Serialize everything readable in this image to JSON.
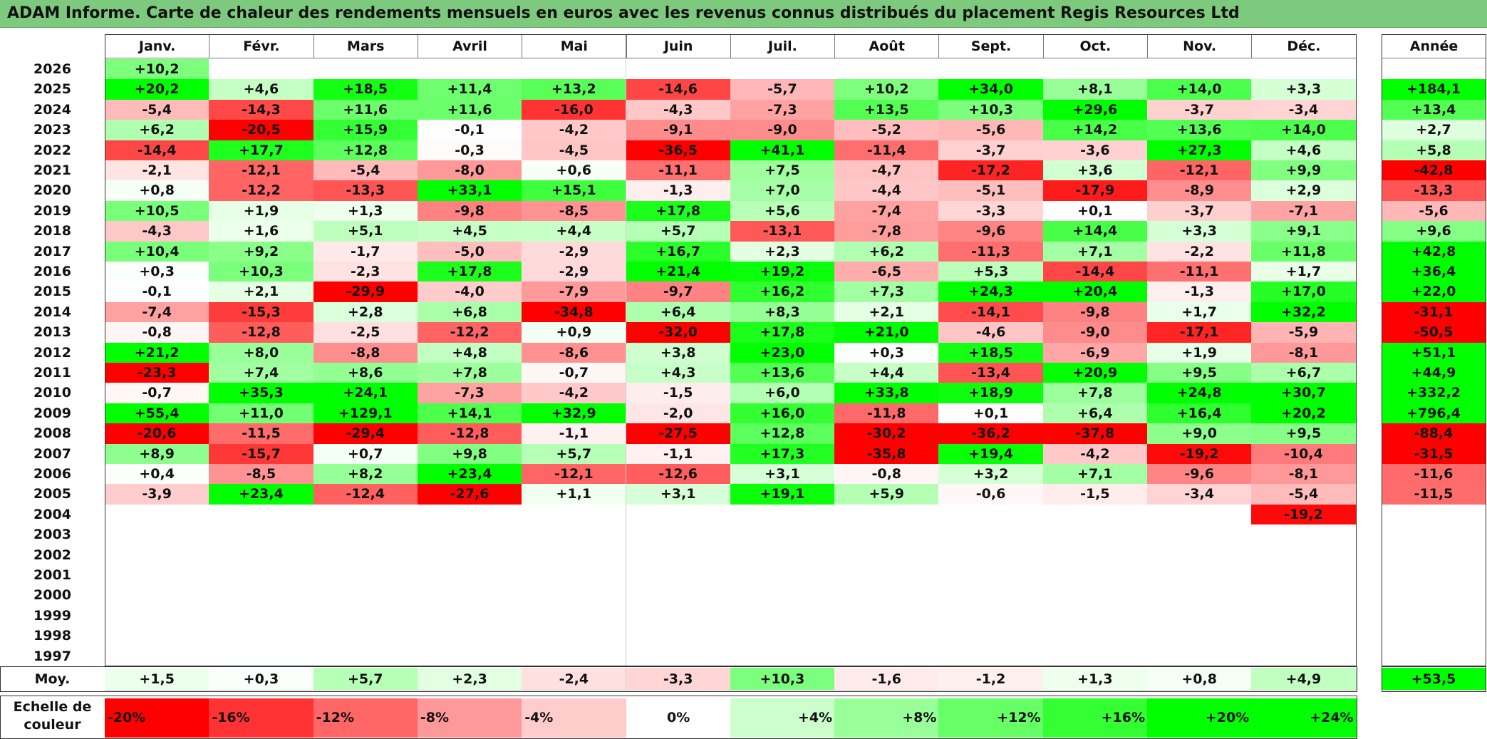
{
  "title": "ADAM Informe. Carte de chaleur des rendements mensuels en euros avec les revenus connus distribués du placement Regis Resources Ltd",
  "chart_data": {
    "type": "heatmap",
    "columns": [
      "Janv.",
      "Févr.",
      "Mars",
      "Avril",
      "Mai",
      "Juin",
      "Juil.",
      "Août",
      "Sept.",
      "Oct.",
      "Nov.",
      "Déc."
    ],
    "year_header": "Année",
    "rows": [
      {
        "year": "2026",
        "months": [
          "+10,2",
          "",
          "",
          "",
          "",
          "",
          "",
          "",
          "",
          "",
          "",
          ""
        ],
        "annual": ""
      },
      {
        "year": "2025",
        "months": [
          "+20,2",
          "+4,6",
          "+18,5",
          "+11,4",
          "+13,2",
          "-14,6",
          "-5,7",
          "+10,2",
          "+34,0",
          "+8,1",
          "+14,0",
          "+3,3"
        ],
        "annual": "+184,1"
      },
      {
        "year": "2024",
        "months": [
          "-5,4",
          "-14,3",
          "+11,6",
          "+11,6",
          "-16,0",
          "-4,3",
          "-7,3",
          "+13,5",
          "+10,3",
          "+29,6",
          "-3,7",
          "-3,4"
        ],
        "annual": "+13,4"
      },
      {
        "year": "2023",
        "months": [
          "+6,2",
          "-20,5",
          "+15,9",
          "-0,1",
          "-4,2",
          "-9,1",
          "-9,0",
          "-5,2",
          "-5,6",
          "+14,2",
          "+13,6",
          "+14,0"
        ],
        "annual": "+2,7"
      },
      {
        "year": "2022",
        "months": [
          "-14,4",
          "+17,7",
          "+12,8",
          "-0,3",
          "-4,5",
          "-36,5",
          "+41,1",
          "-11,4",
          "-3,7",
          "-3,6",
          "+27,3",
          "+4,6"
        ],
        "annual": "+5,8"
      },
      {
        "year": "2021",
        "months": [
          "-2,1",
          "-12,1",
          "-5,4",
          "-8,0",
          "+0,6",
          "-11,1",
          "+7,5",
          "-4,7",
          "-17,2",
          "+3,6",
          "-12,1",
          "+9,9"
        ],
        "annual": "-42,8"
      },
      {
        "year": "2020",
        "months": [
          "+0,8",
          "-12,2",
          "-13,3",
          "+33,1",
          "+15,1",
          "-1,3",
          "+7,0",
          "-4,4",
          "-5,1",
          "-17,9",
          "-8,9",
          "+2,9"
        ],
        "annual": "-13,3"
      },
      {
        "year": "2019",
        "months": [
          "+10,5",
          "+1,9",
          "+1,3",
          "-9,8",
          "-8,5",
          "+17,8",
          "+5,6",
          "-7,4",
          "-3,3",
          "+0,1",
          "-3,7",
          "-7,1"
        ],
        "annual": "-5,6"
      },
      {
        "year": "2018",
        "months": [
          "-4,3",
          "+1,6",
          "+5,1",
          "+4,5",
          "+4,4",
          "+5,7",
          "-13,1",
          "-7,8",
          "-9,6",
          "+14,4",
          "+3,3",
          "+9,1"
        ],
        "annual": "+9,6"
      },
      {
        "year": "2017",
        "months": [
          "+10,4",
          "+9,2",
          "-1,7",
          "-5,0",
          "-2,9",
          "+16,7",
          "+2,3",
          "+6,2",
          "-11,3",
          "+7,1",
          "-2,2",
          "+11,8"
        ],
        "annual": "+42,8"
      },
      {
        "year": "2016",
        "months": [
          "+0,3",
          "+10,3",
          "-2,3",
          "+17,8",
          "-2,9",
          "+21,4",
          "+19,2",
          "-6,5",
          "+5,3",
          "-14,4",
          "-11,1",
          "+1,7"
        ],
        "annual": "+36,4"
      },
      {
        "year": "2015",
        "months": [
          "-0,1",
          "+2,1",
          "-29,9",
          "-4,0",
          "-7,9",
          "-9,7",
          "+16,2",
          "+7,3",
          "+24,3",
          "+20,4",
          "-1,3",
          "+17,0"
        ],
        "annual": "+22,0"
      },
      {
        "year": "2014",
        "months": [
          "-7,4",
          "-15,3",
          "+2,8",
          "+6,8",
          "-34,8",
          "+6,4",
          "+8,3",
          "+2,1",
          "-14,1",
          "-9,8",
          "+1,7",
          "+32,2"
        ],
        "annual": "-31,1"
      },
      {
        "year": "2013",
        "months": [
          "-0,8",
          "-12,8",
          "-2,5",
          "-12,2",
          "+0,9",
          "-32,0",
          "+17,8",
          "+21,0",
          "-4,6",
          "-9,0",
          "-17,1",
          "-5,9"
        ],
        "annual": "-50,5"
      },
      {
        "year": "2012",
        "months": [
          "+21,2",
          "+8,0",
          "-8,8",
          "+4,8",
          "-8,6",
          "+3,8",
          "+23,0",
          "+0,3",
          "+18,5",
          "-6,9",
          "+1,9",
          "-8,1"
        ],
        "annual": "+51,1"
      },
      {
        "year": "2011",
        "months": [
          "-23,3",
          "+7,4",
          "+8,6",
          "+7,8",
          "-0,7",
          "+4,3",
          "+13,6",
          "+4,4",
          "-13,4",
          "+20,9",
          "+9,5",
          "+6,7"
        ],
        "annual": "+44,9"
      },
      {
        "year": "2010",
        "months": [
          "-0,7",
          "+35,3",
          "+24,1",
          "-7,3",
          "-4,2",
          "-1,5",
          "+6,0",
          "+33,8",
          "+18,9",
          "+7,8",
          "+24,8",
          "+30,7"
        ],
        "annual": "+332,2"
      },
      {
        "year": "2009",
        "months": [
          "+55,4",
          "+11,0",
          "+129,1",
          "+14,1",
          "+32,9",
          "-2,0",
          "+16,0",
          "-11,8",
          "+0,1",
          "+6,4",
          "+16,4",
          "+20,2"
        ],
        "annual": "+796,4"
      },
      {
        "year": "2008",
        "months": [
          "-20,6",
          "-11,5",
          "-29,4",
          "-12,8",
          "-1,1",
          "-27,5",
          "+12,8",
          "-30,2",
          "-36,2",
          "-37,8",
          "+9,0",
          "+9,5"
        ],
        "annual": "-88,4"
      },
      {
        "year": "2007",
        "months": [
          "+8,9",
          "-15,7",
          "+0,7",
          "+9,8",
          "+5,7",
          "-1,1",
          "+17,3",
          "-35,8",
          "+19,4",
          "-4,2",
          "-19,2",
          "-10,4"
        ],
        "annual": "-31,5"
      },
      {
        "year": "2006",
        "months": [
          "+0,4",
          "-8,5",
          "+8,2",
          "+23,4",
          "-12,1",
          "-12,6",
          "+3,1",
          "-0,8",
          "+3,2",
          "+7,1",
          "-9,6",
          "-8,1"
        ],
        "annual": "-11,6"
      },
      {
        "year": "2005",
        "months": [
          "-3,9",
          "+23,4",
          "-12,4",
          "-27,6",
          "+1,1",
          "+3,1",
          "+19,1",
          "+5,9",
          "-0,6",
          "-1,5",
          "-3,4",
          "-5,4"
        ],
        "annual": "-11,5"
      },
      {
        "year": "2004",
        "months": [
          "",
          "",
          "",
          "",
          "",
          "",
          "",
          "",
          "",
          "",
          "",
          "-19,2"
        ],
        "annual": ""
      },
      {
        "year": "2003",
        "months": [
          "",
          "",
          "",
          "",
          "",
          "",
          "",
          "",
          "",
          "",
          "",
          ""
        ],
        "annual": ""
      },
      {
        "year": "2002",
        "months": [
          "",
          "",
          "",
          "",
          "",
          "",
          "",
          "",
          "",
          "",
          "",
          ""
        ],
        "annual": ""
      },
      {
        "year": "2001",
        "months": [
          "",
          "",
          "",
          "",
          "",
          "",
          "",
          "",
          "",
          "",
          "",
          ""
        ],
        "annual": ""
      },
      {
        "year": "2000",
        "months": [
          "",
          "",
          "",
          "",
          "",
          "",
          "",
          "",
          "",
          "",
          "",
          ""
        ],
        "annual": ""
      },
      {
        "year": "1999",
        "months": [
          "",
          "",
          "",
          "",
          "",
          "",
          "",
          "",
          "",
          "",
          "",
          ""
        ],
        "annual": ""
      },
      {
        "year": "1998",
        "months": [
          "",
          "",
          "",
          "",
          "",
          "",
          "",
          "",
          "",
          "",
          "",
          ""
        ],
        "annual": ""
      },
      {
        "year": "1997",
        "months": [
          "",
          "",
          "",
          "",
          "",
          "",
          "",
          "",
          "",
          "",
          "",
          ""
        ],
        "annual": ""
      }
    ],
    "average": {
      "label": "Moy.",
      "months": [
        "+1,5",
        "+0,3",
        "+5,7",
        "+2,3",
        "-2,4",
        "-3,3",
        "+10,3",
        "-1,6",
        "-1,2",
        "+1,3",
        "+0,8",
        "+4,9"
      ],
      "annual": "+53,5"
    },
    "color_scale": {
      "label": "Echelle de couleur",
      "stops": [
        "-20%",
        "-16%",
        "-12%",
        "-8%",
        "-4%",
        "0%",
        "+4%",
        "+8%",
        "+12%",
        "+16%",
        "+20%",
        "+24%"
      ],
      "colors": [
        "#ff0000",
        "#ff3333",
        "#ff6666",
        "#ff9999",
        "#ffcccc",
        "#ffffff",
        "#ccffcc",
        "#99ff99",
        "#66ff66",
        "#33ff33",
        "#00ff00",
        "#00ff00"
      ]
    }
  }
}
